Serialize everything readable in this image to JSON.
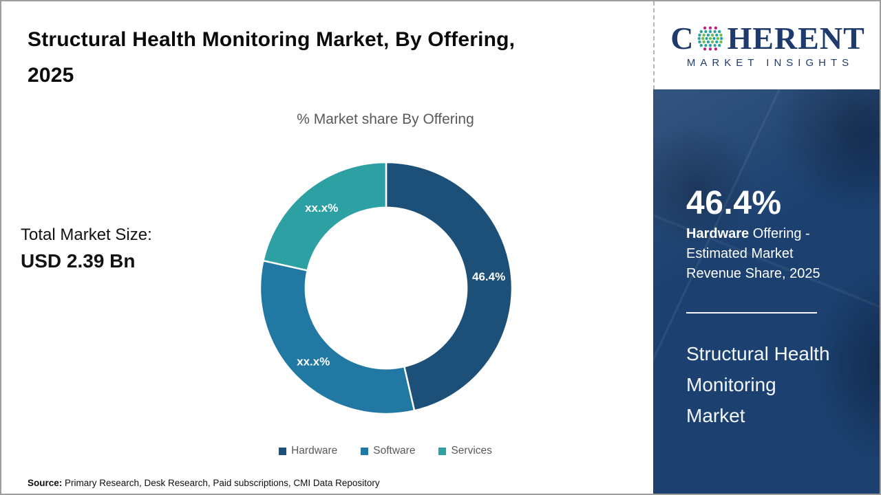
{
  "page": {
    "title": "Structural Health Monitoring Market, By Offering, 2025",
    "total_market_label": "Total Market Size:",
    "total_market_value": "USD 2.39 Bn",
    "source_label": "Source:",
    "source_text": " Primary Research, Desk Research, Paid subscriptions, CMI Data Repository"
  },
  "logo": {
    "word_start": "C",
    "word_end": "HERENT",
    "subtitle": "MARKET INSIGHTS"
  },
  "panel": {
    "share_value": "46.4%",
    "share_highlight": "Hardware",
    "share_desc_rest": " Offering - Estimated Market Revenue Share, 2025",
    "market_name": "Structural Health Monitoring Market"
  },
  "chart_data": {
    "type": "pie",
    "style": "donut",
    "title": "% Market share By Offering",
    "categories": [
      "Hardware",
      "Software",
      "Services"
    ],
    "values": [
      46.4,
      32.1,
      21.5
    ],
    "labels": [
      "46.4%",
      "xx.x%",
      "xx.x%"
    ],
    "colors": [
      "#1d5079",
      "#2179a3",
      "#2da0a4"
    ],
    "legend_position": "bottom",
    "start_angle_deg": 0,
    "inner_radius_ratio": 0.64,
    "note": "Only the Hardware share (46.4%) is labeled in the source image; Software and Services labels are masked as xx.x% — their numeric values here are estimated from arc angles."
  }
}
